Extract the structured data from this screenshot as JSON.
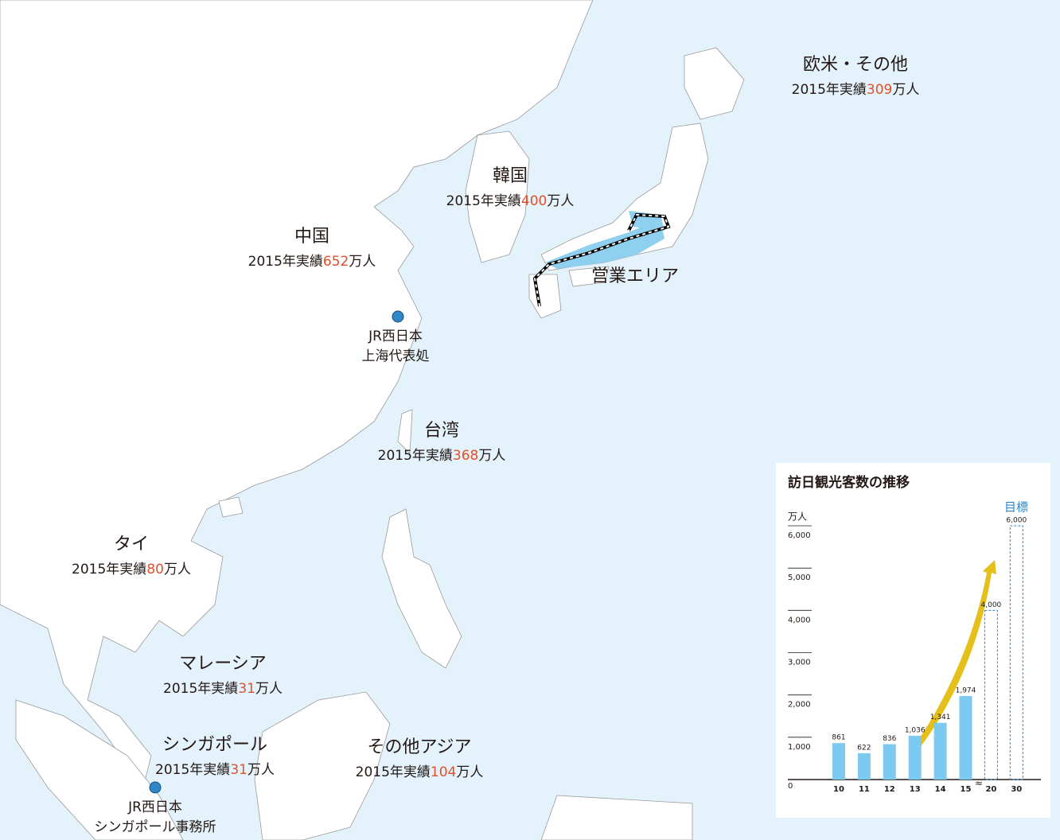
{
  "regions": [
    {
      "name": "欧米・その他",
      "prefix": "2015年実績",
      "value": 309,
      "unit": "万人"
    },
    {
      "name": "韓国",
      "prefix": "2015年実績",
      "value": 400,
      "unit": "万人"
    },
    {
      "name": "中国",
      "prefix": "2015年実績",
      "value": 652,
      "unit": "万人"
    },
    {
      "name": "台湾",
      "prefix": "2015年実績",
      "value": 368,
      "unit": "万人"
    },
    {
      "name": "タイ",
      "prefix": "2015年実績",
      "value": 80,
      "unit": "万人"
    },
    {
      "name": "マレーシア",
      "prefix": "2015年実績",
      "value": 31,
      "unit": "万人"
    },
    {
      "name": "シンガポール",
      "prefix": "2015年実績",
      "value": 31,
      "unit": "万人"
    },
    {
      "name": "その他アジア",
      "prefix": "2015年実績",
      "value": 104,
      "unit": "万人"
    }
  ],
  "area_label": "営業エリア",
  "offices": [
    {
      "lines": [
        "JR西日本",
        "上海代表処"
      ]
    },
    {
      "lines": [
        "JR西日本",
        "シンガポール事務所"
      ]
    }
  ],
  "chart_data": {
    "type": "bar",
    "title": "訪日観光客数の推移",
    "unit_label": "万人",
    "annotation": "目標",
    "categories": [
      "10",
      "11",
      "12",
      "13",
      "14",
      "15",
      "20",
      "30"
    ],
    "values": [
      861,
      622,
      836,
      1036,
      1341,
      1974,
      4000,
      6000
    ],
    "value_labels": [
      "861",
      "622",
      "836",
      "1,036",
      "1,341",
      "1,974",
      "4,000",
      "6,000"
    ],
    "bar_styles": [
      "solid",
      "solid",
      "solid",
      "solid",
      "solid",
      "solid",
      "dashed",
      "dashed"
    ],
    "color": "#7ccaf0",
    "ylim": [
      0,
      6000
    ],
    "yticks": [
      0,
      {
        "value": 1000,
        "label": "1,000"
      },
      {
        "value": 2000,
        "label": "2,000"
      },
      {
        "value": 3000,
        "label": "3,000"
      },
      {
        "value": 4000,
        "label": "4,000"
      },
      {
        "value": 5000,
        "label": "5,000"
      },
      {
        "value": 6000,
        "label": "6,000"
      }
    ]
  }
}
